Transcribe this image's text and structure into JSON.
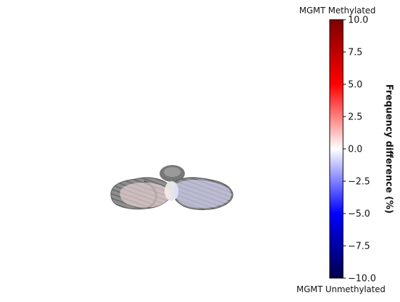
{
  "chart_data": {
    "type": "heatmap",
    "title": "",
    "image": {
      "content": "axial brain slice (cerebellum) with voxel-wise frequency difference overlay",
      "overlay_regions": [
        {
          "name": "left cerebellar hemisphere",
          "value": 1.0
        },
        {
          "name": "right cerebellar hemisphere",
          "value": -1.5
        }
      ]
    },
    "colorbar": {
      "colormap": "seismic",
      "vmin": -10.0,
      "vmax": 10.0,
      "ticks": [
        10.0,
        7.5,
        5.0,
        2.5,
        0.0,
        -2.5,
        -5.0,
        -7.5,
        -10.0
      ],
      "tick_labels": [
        "10.0",
        "7.5",
        "5.0",
        "2.5",
        "0.0",
        "−2.5",
        "−5.0",
        "−7.5",
        "−10.0"
      ],
      "label": "Frequency difference (%)",
      "top_label": "MGMT Methylated",
      "bottom_label": "MGMT Unmethylated",
      "colors": {
        "max": "#7f0000",
        "upper": "#ff0000",
        "mid": "#ffffff",
        "lower": "#0000ff",
        "min": "#00004c"
      }
    }
  }
}
